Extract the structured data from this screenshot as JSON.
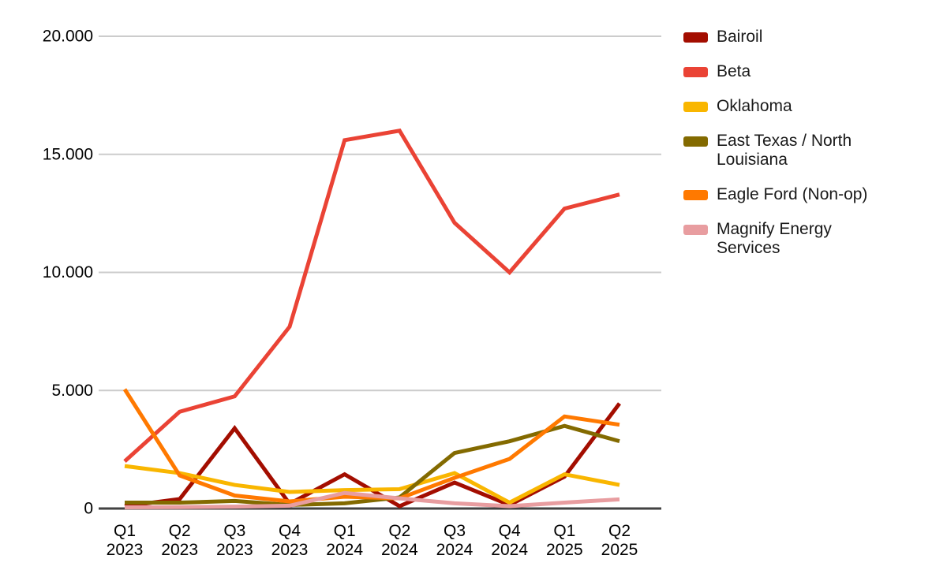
{
  "chart_data": {
    "type": "line",
    "title": "",
    "categories": [
      "Q1 2023",
      "Q2 2023",
      "Q3 2023",
      "Q4 2023",
      "Q1 2024",
      "Q2 2024",
      "Q3 2024",
      "Q4 2024",
      "Q1 2025",
      "Q2 2025"
    ],
    "series": [
      {
        "name": "Bairoil",
        "color": "#A30D00",
        "values": [
          100,
          400,
          3400,
          200,
          1450,
          100,
          1100,
          150,
          1350,
          4450
        ]
      },
      {
        "name": "Beta",
        "color": "#EA4335",
        "values": [
          2000,
          4100,
          4750,
          7700,
          15600,
          16000,
          12100,
          10000,
          12700,
          13300
        ]
      },
      {
        "name": "Oklahoma",
        "color": "#F9B600",
        "values": [
          1800,
          1500,
          1000,
          700,
          780,
          820,
          1500,
          250,
          1450,
          1000
        ]
      },
      {
        "name": "East Texas / North Louisiana",
        "legend_label": "East Texas / North\nLouisiana",
        "color": "#836A00",
        "values": [
          250,
          250,
          320,
          150,
          220,
          470,
          2350,
          2850,
          3500,
          2850
        ]
      },
      {
        "name": "Eagle Ford (Non-op)",
        "color": "#FF7900",
        "values": [
          5050,
          1400,
          550,
          300,
          500,
          430,
          1300,
          2100,
          3900,
          3550
        ]
      },
      {
        "name": "Magnify Energy Services",
        "legend_label": "Magnify Energy\nServices",
        "color": "#E89DA0",
        "values": [
          50,
          60,
          80,
          120,
          660,
          430,
          220,
          100,
          250,
          390
        ]
      }
    ],
    "ylim": [
      0,
      20000
    ],
    "yticks": [
      0,
      5000,
      10000,
      15000,
      20000
    ],
    "ytick_labels": [
      "0",
      "5.000",
      "10.000",
      "15.000",
      "20.000"
    ],
    "grid": true,
    "legend_position": "right"
  },
  "colors": {
    "background": "#FFFFFF",
    "gridline": "#CCCCCC",
    "zero_axis": "#424242",
    "axis_text": "#000000",
    "legend_text": "#1A1A1A"
  }
}
